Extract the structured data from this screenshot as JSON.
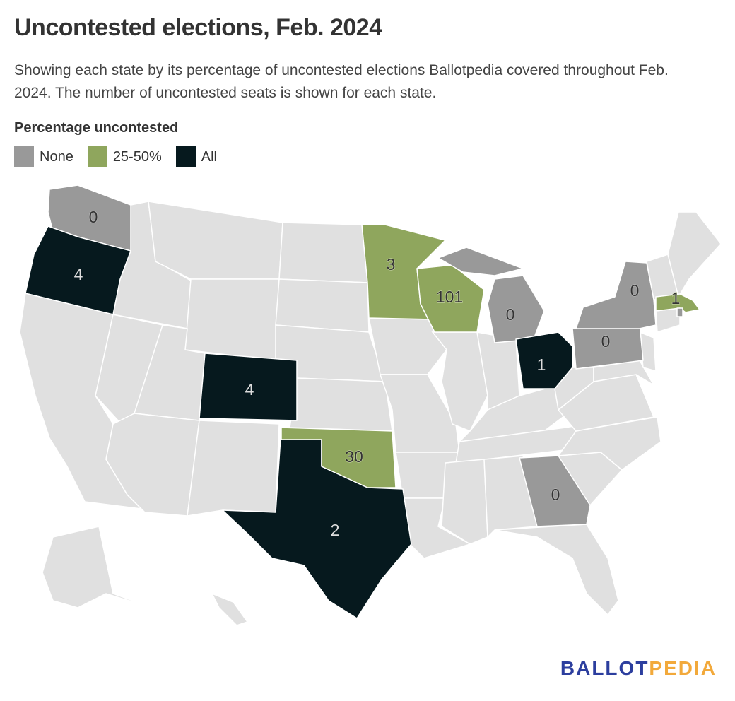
{
  "header": {
    "title": "Uncontested elections, Feb. 2024",
    "subtitle": "Showing each state by its percentage of uncontested elections Ballotpedia covered throughout Feb. 2024. The number of uncontested seats is shown for each state."
  },
  "legend": {
    "title": "Percentage uncontested",
    "items": [
      {
        "label": "None",
        "color": "#999999"
      },
      {
        "label": "25-50%",
        "color": "#8fa65d"
      },
      {
        "label": "All",
        "color": "#06191e"
      }
    ]
  },
  "colors": {
    "none": "#999999",
    "partial": "#8fa65d",
    "all": "#06191e",
    "no_data": "#e0e0e0"
  },
  "states": [
    {
      "name": "Washington",
      "category": "none",
      "seats": "0"
    },
    {
      "name": "Oregon",
      "category": "all",
      "seats": "4"
    },
    {
      "name": "Colorado",
      "category": "all",
      "seats": "4"
    },
    {
      "name": "Texas",
      "category": "all",
      "seats": "2"
    },
    {
      "name": "Oklahoma",
      "category": "partial",
      "seats": "30"
    },
    {
      "name": "Minnesota",
      "category": "partial",
      "seats": "3"
    },
    {
      "name": "Wisconsin",
      "category": "partial",
      "seats": "101"
    },
    {
      "name": "Michigan",
      "category": "none",
      "seats": "0"
    },
    {
      "name": "Ohio",
      "category": "all",
      "seats": "1"
    },
    {
      "name": "Pennsylvania",
      "category": "none",
      "seats": "0"
    },
    {
      "name": "New York",
      "category": "none",
      "seats": "0"
    },
    {
      "name": "Massachusetts",
      "category": "partial",
      "seats": "1"
    },
    {
      "name": "Georgia",
      "category": "none",
      "seats": "0"
    },
    {
      "name": "Rhode Island",
      "category": "none",
      "seats": ""
    }
  ],
  "branding": {
    "logo_part1": "BALLOT",
    "logo_part2": "PEDIA",
    "color1": "#2c3e9e",
    "color2": "#f2a93b"
  }
}
